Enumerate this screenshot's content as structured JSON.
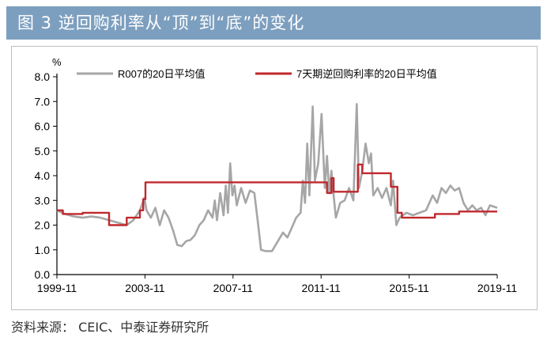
{
  "figure": {
    "title": "图 3  逆回购利率从“顶”到“底”的变化",
    "source": "资料来源： CEIC、中泰证券研究所"
  },
  "chart_data": {
    "type": "line",
    "unit_label": "%",
    "ylim": [
      0.0,
      8.0
    ],
    "yticks": [
      "0.0",
      "1.0",
      "2.0",
      "3.0",
      "4.0",
      "5.0",
      "6.0",
      "7.0",
      "8.0"
    ],
    "xlim": [
      1999.83,
      2019.83
    ],
    "xticks": [
      {
        "label": "1999-11",
        "x": 1999.83
      },
      {
        "label": "2003-11",
        "x": 2003.83
      },
      {
        "label": "2007-11",
        "x": 2007.83
      },
      {
        "label": "2011-11",
        "x": 2011.83
      },
      {
        "label": "2015-11",
        "x": 2015.83
      },
      {
        "label": "2019-11",
        "x": 2019.83
      }
    ],
    "legend_position": "top",
    "series": [
      {
        "name": "R007的20日平均值",
        "color": "#a6a6a6",
        "points": [
          [
            1999.83,
            2.6
          ],
          [
            2000.2,
            2.45
          ],
          [
            2000.6,
            2.35
          ],
          [
            2001.0,
            2.3
          ],
          [
            2001.4,
            2.35
          ],
          [
            2001.8,
            2.3
          ],
          [
            2002.2,
            2.2
          ],
          [
            2002.6,
            2.1
          ],
          [
            2003.0,
            2.0
          ],
          [
            2003.3,
            2.2
          ],
          [
            2003.6,
            2.6
          ],
          [
            2003.8,
            3.1
          ],
          [
            2003.9,
            2.6
          ],
          [
            2004.1,
            2.3
          ],
          [
            2004.3,
            2.7
          ],
          [
            2004.5,
            2.0
          ],
          [
            2004.7,
            2.6
          ],
          [
            2004.9,
            2.3
          ],
          [
            2005.1,
            1.8
          ],
          [
            2005.3,
            1.2
          ],
          [
            2005.5,
            1.15
          ],
          [
            2005.7,
            1.35
          ],
          [
            2005.9,
            1.4
          ],
          [
            2006.1,
            1.6
          ],
          [
            2006.3,
            2.0
          ],
          [
            2006.5,
            2.2
          ],
          [
            2006.7,
            2.6
          ],
          [
            2006.9,
            2.3
          ],
          [
            2007.0,
            3.0
          ],
          [
            2007.1,
            2.2
          ],
          [
            2007.25,
            3.3
          ],
          [
            2007.4,
            2.4
          ],
          [
            2007.5,
            3.6
          ],
          [
            2007.6,
            2.5
          ],
          [
            2007.7,
            4.5
          ],
          [
            2007.8,
            3.2
          ],
          [
            2007.9,
            3.6
          ],
          [
            2008.0,
            2.8
          ],
          [
            2008.2,
            3.5
          ],
          [
            2008.4,
            2.9
          ],
          [
            2008.6,
            3.4
          ],
          [
            2008.8,
            3.3
          ],
          [
            2009.0,
            1.8
          ],
          [
            2009.1,
            1.0
          ],
          [
            2009.3,
            0.95
          ],
          [
            2009.6,
            0.95
          ],
          [
            2009.9,
            1.4
          ],
          [
            2010.1,
            1.7
          ],
          [
            2010.3,
            1.5
          ],
          [
            2010.5,
            1.9
          ],
          [
            2010.7,
            2.3
          ],
          [
            2010.9,
            2.5
          ],
          [
            2011.0,
            3.8
          ],
          [
            2011.1,
            2.9
          ],
          [
            2011.2,
            5.3
          ],
          [
            2011.3,
            3.2
          ],
          [
            2011.45,
            6.8
          ],
          [
            2011.55,
            3.8
          ],
          [
            2011.7,
            4.5
          ],
          [
            2011.85,
            6.5
          ],
          [
            2012.0,
            3.5
          ],
          [
            2012.1,
            4.8
          ],
          [
            2012.2,
            3.3
          ],
          [
            2012.3,
            4.2
          ],
          [
            2012.4,
            3.2
          ],
          [
            2012.5,
            2.3
          ],
          [
            2012.7,
            2.9
          ],
          [
            2012.9,
            3.0
          ],
          [
            2013.1,
            3.5
          ],
          [
            2013.3,
            3.0
          ],
          [
            2013.45,
            6.9
          ],
          [
            2013.55,
            3.5
          ],
          [
            2013.7,
            4.2
          ],
          [
            2013.85,
            5.3
          ],
          [
            2014.0,
            4.5
          ],
          [
            2014.1,
            4.9
          ],
          [
            2014.2,
            3.2
          ],
          [
            2014.4,
            3.5
          ],
          [
            2014.6,
            3.1
          ],
          [
            2014.8,
            3.5
          ],
          [
            2015.0,
            2.8
          ],
          [
            2015.1,
            3.8
          ],
          [
            2015.25,
            2.0
          ],
          [
            2015.4,
            2.3
          ],
          [
            2015.7,
            2.5
          ],
          [
            2016.0,
            2.4
          ],
          [
            2016.3,
            2.5
          ],
          [
            2016.6,
            2.6
          ],
          [
            2016.9,
            3.2
          ],
          [
            2017.1,
            2.9
          ],
          [
            2017.3,
            3.5
          ],
          [
            2017.5,
            3.3
          ],
          [
            2017.7,
            3.6
          ],
          [
            2017.9,
            3.4
          ],
          [
            2018.1,
            3.5
          ],
          [
            2018.3,
            2.9
          ],
          [
            2018.5,
            2.6
          ],
          [
            2018.7,
            2.8
          ],
          [
            2018.9,
            2.6
          ],
          [
            2019.1,
            2.7
          ],
          [
            2019.3,
            2.4
          ],
          [
            2019.5,
            2.8
          ],
          [
            2019.83,
            2.7
          ]
        ]
      },
      {
        "name": "7天期逆回购利率的20日平均值",
        "color": "#c0282d",
        "points": [
          [
            1999.83,
            2.6
          ],
          [
            2000.1,
            2.6
          ],
          [
            2000.1,
            2.45
          ],
          [
            2001.0,
            2.45
          ],
          [
            2001.0,
            2.5
          ],
          [
            2002.2,
            2.5
          ],
          [
            2002.2,
            2.0
          ],
          [
            2003.0,
            2.0
          ],
          [
            2003.0,
            2.3
          ],
          [
            2003.6,
            2.3
          ],
          [
            2003.6,
            2.6
          ],
          [
            2003.75,
            2.6
          ],
          [
            2003.75,
            3.05
          ],
          [
            2003.85,
            3.05
          ],
          [
            2003.85,
            3.73
          ],
          [
            2012.1,
            3.73
          ],
          [
            2012.1,
            3.3
          ],
          [
            2012.3,
            3.3
          ],
          [
            2012.3,
            3.9
          ],
          [
            2012.4,
            3.9
          ],
          [
            2012.4,
            3.35
          ],
          [
            2013.5,
            3.35
          ],
          [
            2013.5,
            4.45
          ],
          [
            2013.7,
            4.45
          ],
          [
            2013.7,
            4.1
          ],
          [
            2015.0,
            4.1
          ],
          [
            2015.0,
            3.55
          ],
          [
            2015.3,
            3.55
          ],
          [
            2015.3,
            2.5
          ],
          [
            2015.5,
            2.5
          ],
          [
            2015.5,
            2.3
          ],
          [
            2017.0,
            2.3
          ],
          [
            2017.0,
            2.45
          ],
          [
            2018.1,
            2.45
          ],
          [
            2018.1,
            2.55
          ],
          [
            2019.83,
            2.55
          ]
        ]
      }
    ]
  }
}
